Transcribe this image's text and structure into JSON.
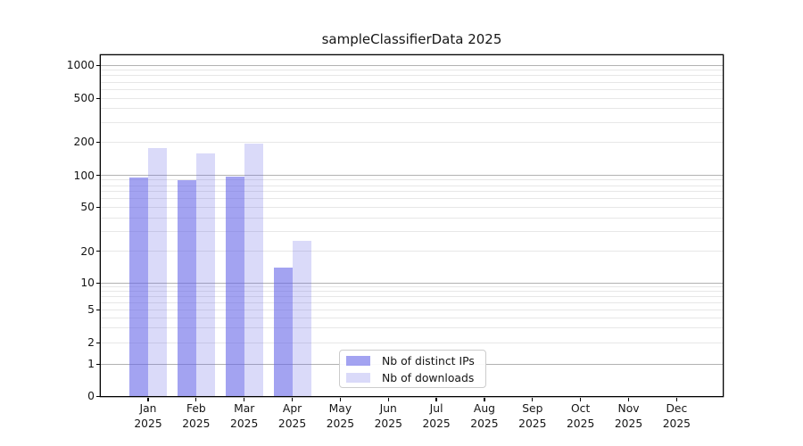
{
  "title": "sampleClassifierData 2025",
  "legend": {
    "items": [
      {
        "label": "Nb of distinct IPs",
        "color": "rgba(102,102,232,0.60)"
      },
      {
        "label": "Nb of downloads",
        "color": "rgba(102,102,232,0.24)"
      }
    ]
  },
  "y_axis": {
    "tick_labels": [
      "1000",
      "500",
      "200",
      "100",
      "50",
      "20",
      "10",
      "5",
      "2",
      "1",
      "0"
    ],
    "tick_values": [
      1000,
      500,
      200,
      100,
      50,
      20,
      10,
      5,
      2,
      1,
      0
    ]
  },
  "x_axis": {
    "months": [
      "Jan",
      "Feb",
      "Mar",
      "Apr",
      "May",
      "Jun",
      "Jul",
      "Aug",
      "Sep",
      "Oct",
      "Nov",
      "Dec"
    ],
    "year": "2025"
  },
  "chart_data": {
    "type": "bar",
    "title": "sampleClassifierData 2025",
    "categories": [
      "Jan 2025",
      "Feb 2025",
      "Mar 2025",
      "Apr 2025",
      "May 2025",
      "Jun 2025",
      "Jul 2025",
      "Aug 2025",
      "Sep 2025",
      "Oct 2025",
      "Nov 2025",
      "Dec 2025"
    ],
    "series": [
      {
        "name": "Nb of distinct IPs",
        "values": [
          95,
          90,
          98,
          14,
          0,
          0,
          0,
          0,
          0,
          0,
          0,
          0
        ]
      },
      {
        "name": "Nb of downloads",
        "values": [
          175,
          158,
          193,
          25,
          0,
          0,
          0,
          0,
          0,
          0,
          0,
          0
        ]
      }
    ],
    "yscale": "symlog",
    "yticks": [
      0,
      1,
      2,
      5,
      10,
      20,
      50,
      100,
      200,
      500,
      1000
    ],
    "minor_gridlines": [
      2,
      3,
      4,
      5,
      6,
      7,
      8,
      9,
      20,
      30,
      40,
      50,
      60,
      70,
      80,
      90,
      200,
      300,
      400,
      500,
      600,
      700,
      800,
      900
    ],
    "major_gridlines": [
      1,
      10,
      100,
      1000
    ],
    "ylim": [
      0,
      1400
    ],
    "xlabel": "",
    "ylabel": "",
    "grid": "horizontal",
    "legend_position": "inside-bottom-center"
  },
  "colors": {
    "bar_base": "#6666e8",
    "bar_distinct_ips": "rgba(102,102,232,0.60)",
    "bar_downloads": "rgba(102,102,232,0.24)",
    "grid_major": "#b2b2b2",
    "grid_minor": "#e7e7e7",
    "spine": "#000000",
    "text": "#151515"
  }
}
